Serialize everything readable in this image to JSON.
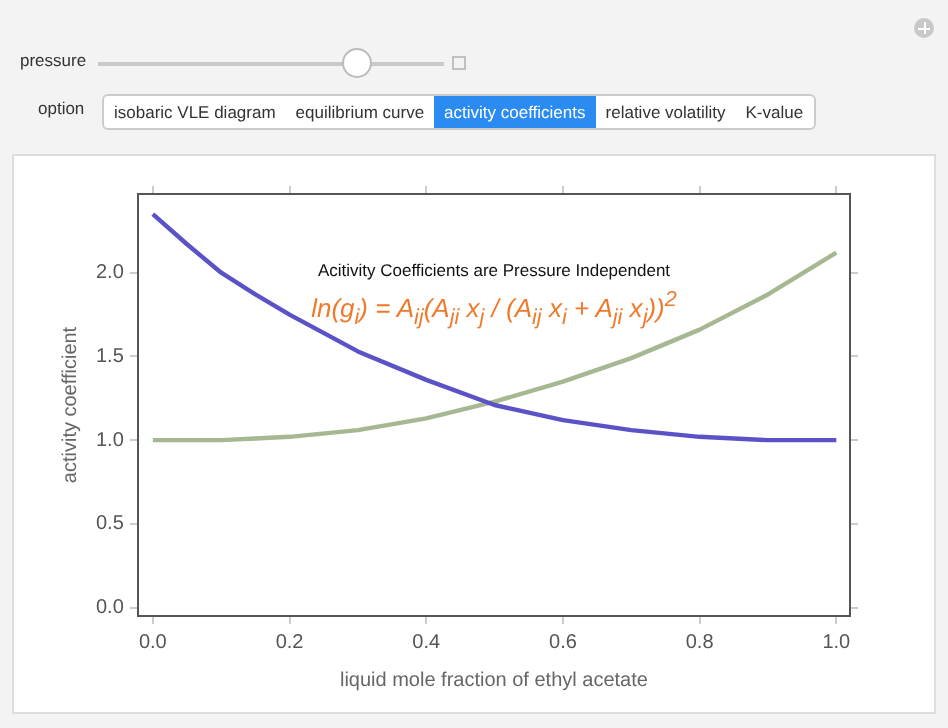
{
  "chart_data": {
    "type": "line",
    "title": "Acitivity Coefficients are Pressure Independent",
    "xlabel": "liquid mole fraction of ethyl acetate",
    "ylabel": "activity coefficient",
    "x": [
      0,
      0.05,
      0.1,
      0.15,
      0.2,
      0.3,
      0.4,
      0.5,
      0.6,
      0.7,
      0.8,
      0.9,
      1.0
    ],
    "series": [
      {
        "color": "#5b52c8",
        "values": [
          2.35,
          2.17,
          2.0,
          1.87,
          1.75,
          1.53,
          1.36,
          1.21,
          1.12,
          1.06,
          1.02,
          1.0,
          1.0
        ]
      },
      {
        "color": "#a6b892",
        "values": [
          1.0,
          1.0,
          1.0,
          1.01,
          1.02,
          1.06,
          1.13,
          1.23,
          1.35,
          1.49,
          1.66,
          1.87,
          2.12
        ]
      }
    ],
    "xlim": [
      -0.022,
      1.02
    ],
    "ylim": [
      -0.05,
      2.47
    ],
    "xticks": [
      {
        "value": 0,
        "label": "0.0"
      },
      0.2,
      0.4,
      0.6,
      0.8,
      {
        "value": 1,
        "label": "1.0"
      }
    ],
    "yticks": [
      {
        "value": 0,
        "label": "0.0"
      },
      0.5,
      {
        "value": 1,
        "label": "1.0"
      },
      1.5,
      {
        "value": 2,
        "label": "2.0"
      }
    ],
    "grid": false,
    "legend": false,
    "marker": "none",
    "line_style": "solid",
    "annotations": [
      "ln(g$_{i}$) = A$_{ij}$(A$_{ji}$ x$_{j}$ / (A$_{ij}$ x$_{i}$ + A$_{ji}$ x$_{j}$))$^{2}$",
      "pressure",
      "option",
      "isobaric VLE diagram",
      "equilibrium curve",
      "activity coefficients",
      "relative volatility",
      "K-value"
    ]
  }
}
